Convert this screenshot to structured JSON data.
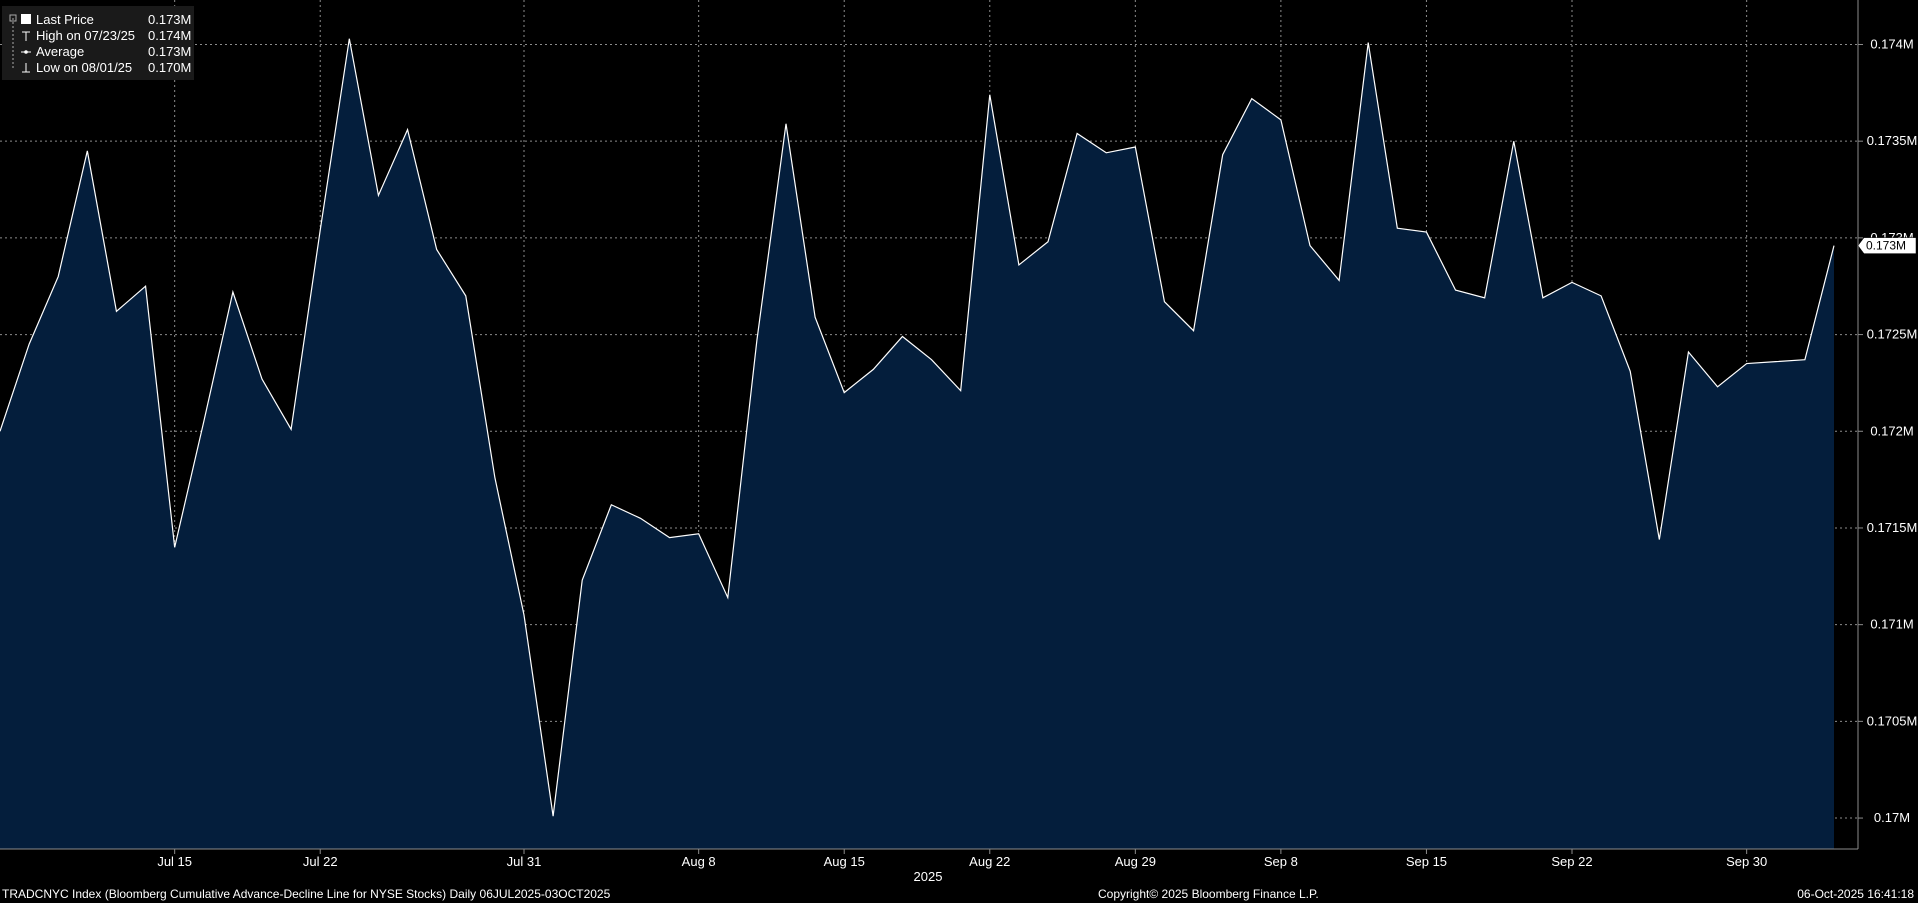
{
  "colors": {
    "background": "#000000",
    "area_fill": "#041e3c",
    "line": "#ffffff",
    "grid": "#8c8c8c",
    "text": "#ffffff",
    "legend_bg": "#1a1a1a"
  },
  "legend": {
    "placement": "top-left",
    "items": [
      {
        "label": "Last Price",
        "value": "0.173M",
        "icon": "filled-square-icon"
      },
      {
        "label": "High on 07/23/25",
        "value": "0.174M",
        "icon": "high-marker-icon"
      },
      {
        "label": "Average",
        "value": "0.173M",
        "icon": "average-marker-icon"
      },
      {
        "label": "Low on 08/01/25",
        "value": "0.170M",
        "icon": "low-marker-icon"
      }
    ]
  },
  "last_price_tag": "0.173M",
  "footer": {
    "description": "TRADCNYC Index (Bloomberg Cumulative Advance-Decline Line for NYSE Stocks) Daily 06JUL2025-03OCT2025",
    "copyright": "Copyright© 2025 Bloomberg Finance L.P.",
    "timestamp": "06-Oct-2025 16:41:18"
  },
  "chart_data": {
    "type": "area",
    "year_label": "2025",
    "x_ticks": [
      "Jul 15",
      "Jul 22",
      "Jul 31",
      "Aug 8",
      "Aug 15",
      "Aug 22",
      "Aug 29",
      "Sep 8",
      "Sep 15",
      "Sep 22",
      "Sep 30"
    ],
    "y_ticks": [
      "0.17M",
      "0.1705M",
      "0.171M",
      "0.1715M",
      "0.172M",
      "0.1725M",
      "0.173M",
      "0.1735M",
      "0.174M"
    ],
    "ylim": [
      0.16984,
      0.17423
    ],
    "grid": true,
    "series": [
      {
        "values": [
          0.172,
          0.17245,
          0.1728,
          0.17345,
          0.17262,
          0.17275,
          0.1714,
          0.17205,
          0.17272,
          0.17227,
          0.17201,
          0.17304,
          0.17403,
          0.17322,
          0.17356,
          0.17294,
          0.1727,
          0.17176,
          0.17105,
          0.17001,
          0.17123,
          0.17162,
          0.17155,
          0.17145,
          0.17147,
          0.17114,
          0.17247,
          0.17359,
          0.17259,
          0.1722,
          0.17232,
          0.17249,
          0.17237,
          0.17221,
          0.17374,
          0.17286,
          0.17298,
          0.17354,
          0.17344,
          0.17347,
          0.17267,
          0.17252,
          0.17343,
          0.17372,
          0.17361,
          0.17296,
          0.17278,
          0.17401,
          0.17305,
          0.17303,
          0.17273,
          0.17269,
          0.1735,
          0.17269,
          0.17277,
          0.1727,
          0.17231,
          0.17144,
          0.17241,
          0.17223,
          0.17235,
          0.17236,
          0.17237,
          0.17296
        ]
      }
    ]
  }
}
